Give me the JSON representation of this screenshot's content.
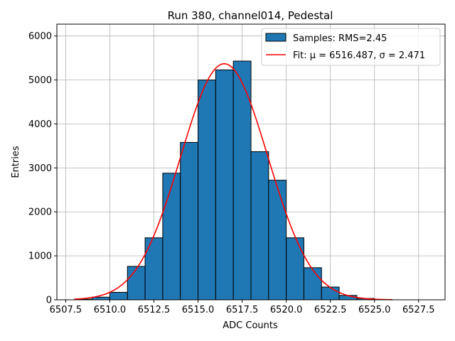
{
  "chart_data": {
    "type": "bar",
    "title": "Run 380, channel014, Pedestal",
    "xlabel": "ADC Counts",
    "ylabel": "Entries",
    "xlim": [
      6507.0,
      6529.0
    ],
    "ylim": [
      0,
      6270
    ],
    "x_ticks": [
      6507.5,
      6510.0,
      6512.5,
      6515.0,
      6517.5,
      6520.0,
      6522.5,
      6525.0,
      6527.5
    ],
    "x_tick_labels": [
      "6507.5",
      "6510.0",
      "6512.5",
      "6515.0",
      "6517.5",
      "6520.0",
      "6522.5",
      "6525.0",
      "6527.5"
    ],
    "y_ticks": [
      0,
      1000,
      2000,
      3000,
      4000,
      5000,
      6000
    ],
    "y_tick_labels": [
      "0",
      "1000",
      "2000",
      "3000",
      "4000",
      "5000",
      "6000"
    ],
    "grid": true,
    "legend_position": "top-right",
    "bin_edges": [
      6508,
      6509,
      6510,
      6511,
      6512,
      6513,
      6514,
      6515,
      6516,
      6517,
      6518,
      6519,
      6520,
      6521,
      6522,
      6523,
      6524,
      6525,
      6526
    ],
    "values": [
      15,
      60,
      170,
      760,
      1410,
      2880,
      3580,
      5000,
      5230,
      5430,
      3370,
      2720,
      1410,
      730,
      290,
      100,
      30,
      8
    ],
    "series": [
      {
        "name": "Samples: RMS=2.45",
        "kind": "histogram",
        "color": "#1f77b4",
        "edgecolor": "#000000"
      },
      {
        "name": "Fit: μ = 6516.487, σ = 2.471",
        "kind": "gaussian_fit",
        "color": "#ff0000",
        "mu": 6516.487,
        "sigma": 2.471,
        "amplitude": 5370,
        "x_range": [
          6508,
          6526
        ]
      }
    ]
  }
}
